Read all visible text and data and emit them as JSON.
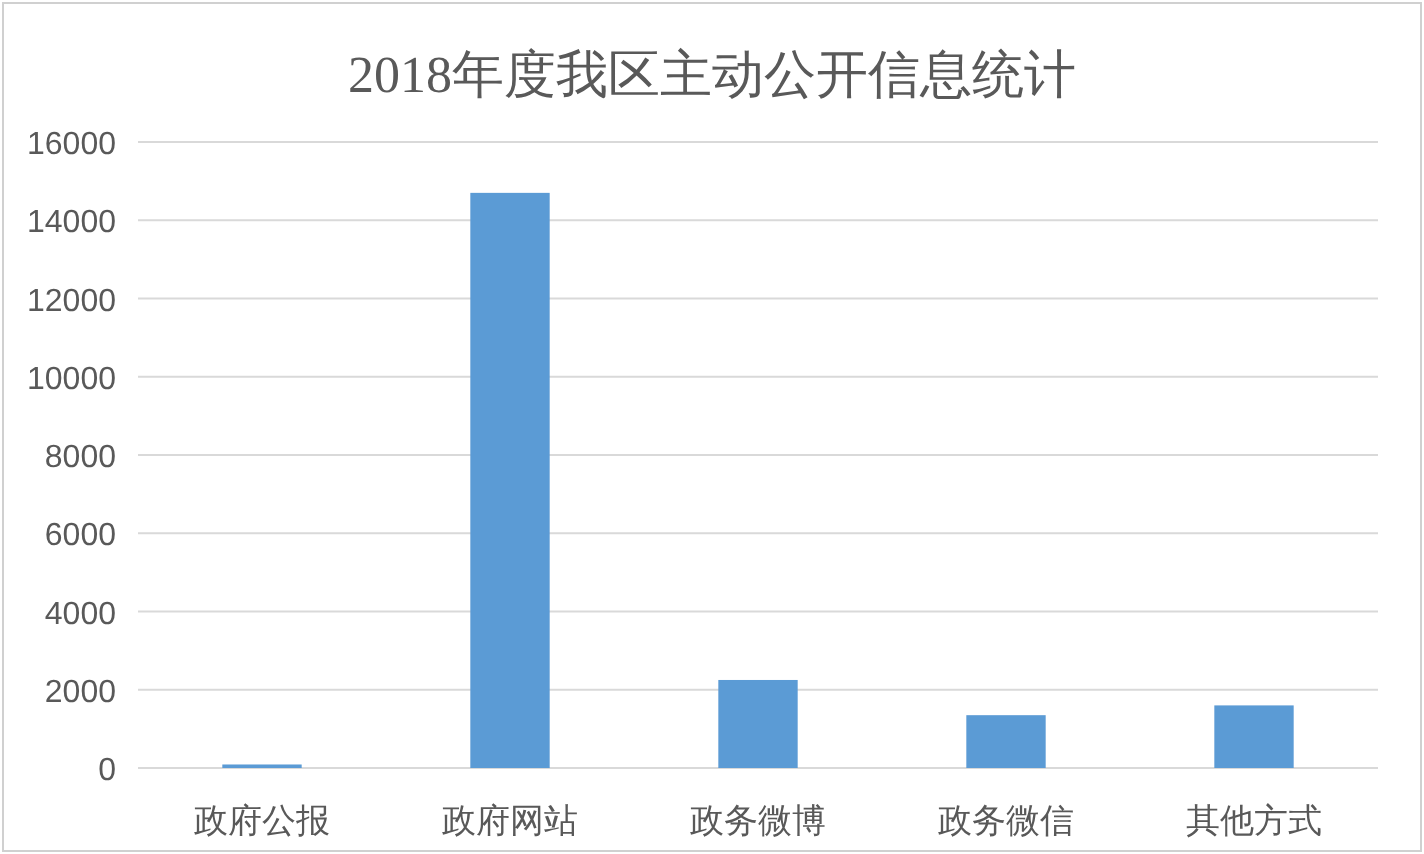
{
  "chart_data": {
    "type": "bar",
    "title": "2018年度我区主动公开信息统计",
    "categories": [
      "政府公报",
      "政府网站",
      "政务微博",
      "政务微信",
      "其他方式"
    ],
    "values": [
      90,
      14700,
      2250,
      1350,
      1600
    ],
    "color": "#5b9bd5",
    "ylim": [
      0,
      16000
    ],
    "yticks": [
      0,
      2000,
      4000,
      6000,
      8000,
      10000,
      12000,
      14000,
      16000
    ],
    "grid": "y"
  }
}
